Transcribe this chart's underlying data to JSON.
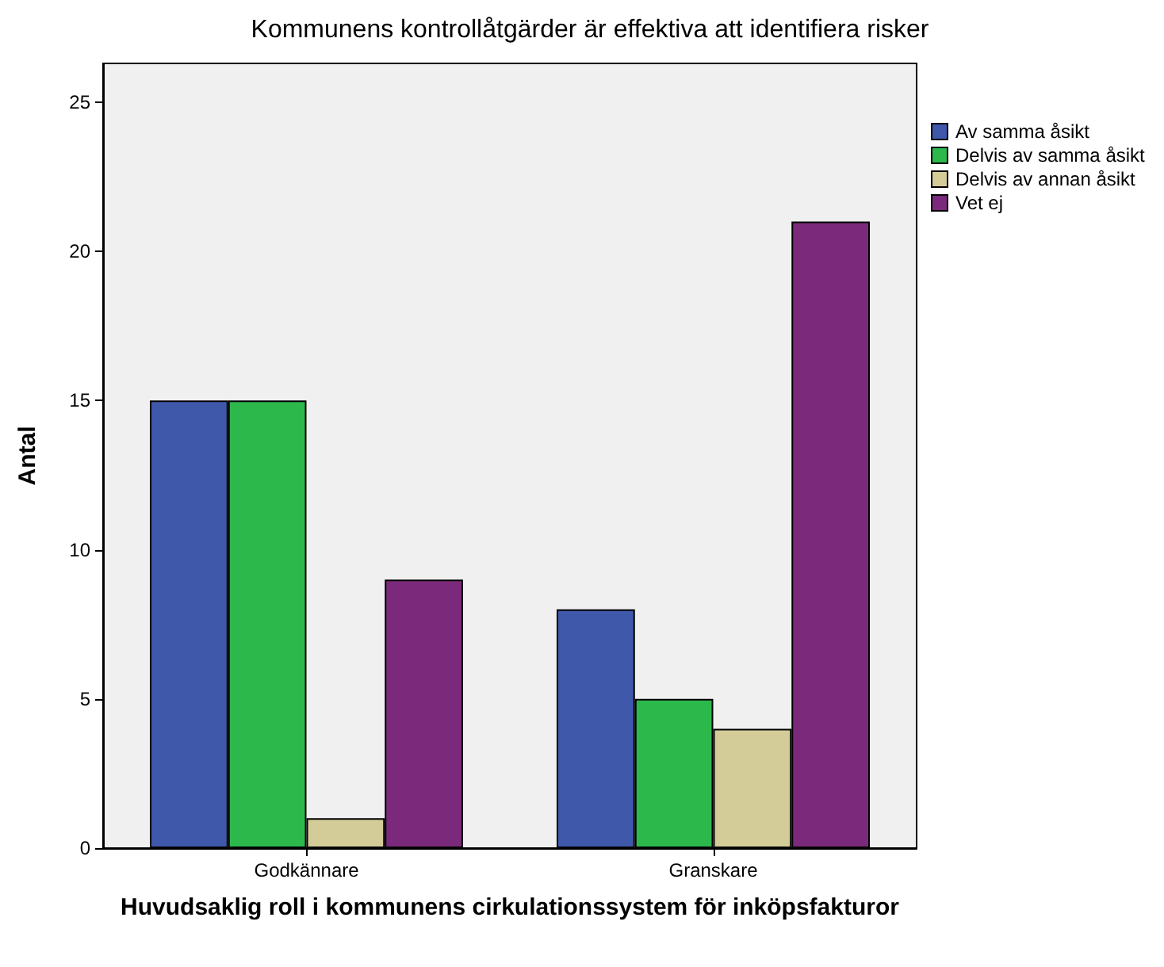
{
  "chart_data": {
    "type": "bar",
    "title": "Kommunens kontrollåtgärder är effektiva att identifiera risker",
    "xlabel": "Huvudsaklig roll i kommunens cirkulationssystem för inköpsfakturor",
    "ylabel": "Antal",
    "categories": [
      "Godkännare",
      "Granskare"
    ],
    "series": [
      {
        "name": "Av samma åsikt",
        "color": "#3f58aa",
        "values": [
          15,
          8
        ]
      },
      {
        "name": "Delvis av samma åsikt",
        "color": "#2db84c",
        "values": [
          15,
          5
        ]
      },
      {
        "name": "Delvis av annan åsikt",
        "color": "#d4cc98",
        "values": [
          1,
          4
        ]
      },
      {
        "name": "Vet ej",
        "color": "#7b2a7b",
        "values": [
          9,
          21
        ]
      }
    ],
    "ylim": [
      0,
      26.3
    ],
    "yticks": [
      0,
      5,
      10,
      15,
      20,
      25
    ],
    "grid": false,
    "legend": "top right"
  }
}
